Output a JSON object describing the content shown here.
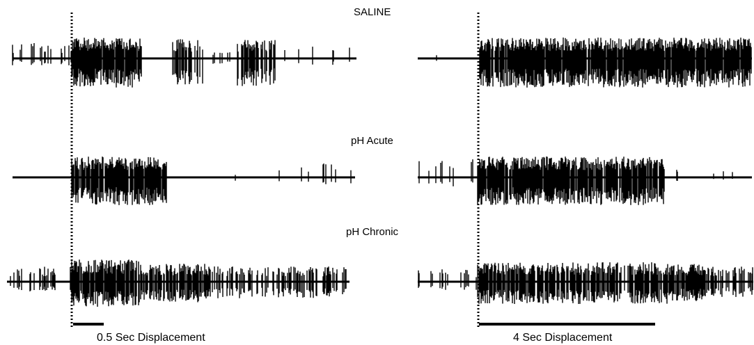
{
  "conditions": [
    {
      "label": "SALINE"
    },
    {
      "label": "pH Acute"
    },
    {
      "label": "pH Chronic"
    }
  ],
  "scale_bars": {
    "left": "0.5 Sec Displacement",
    "right": "4 Sec Displacement"
  },
  "colors": {
    "trace": "#000000",
    "background": "#ffffff"
  }
}
